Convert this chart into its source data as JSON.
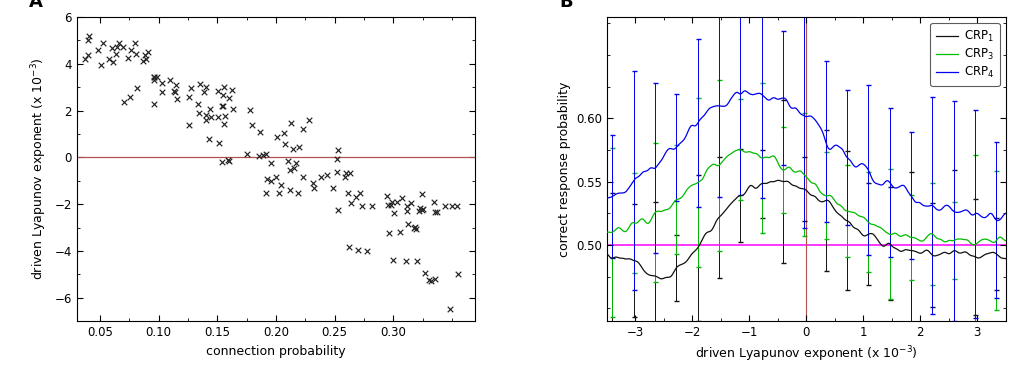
{
  "panel_A": {
    "label": "A",
    "xlabel": "connection probability",
    "ylabel": "driven Lyapunov exponent (x 10$^{-3}$)",
    "xlim": [
      0.03,
      0.37
    ],
    "ylim": [
      -7.0,
      6.0
    ],
    "yticks": [
      -6,
      -4,
      -2,
      0,
      2,
      4,
      6
    ],
    "xticks": [
      0.05,
      0.1,
      0.15,
      0.2,
      0.25,
      0.3
    ],
    "hline_y": 0,
    "hline_color": "#b05050",
    "scatter_color": "#222222"
  },
  "panel_B": {
    "label": "B",
    "xlabel": "driven Lyapunov exponent (x 10$^{-3}$)",
    "ylabel": "correct response probability",
    "xlim": [
      -3.5,
      3.5
    ],
    "ylim": [
      0.44,
      0.68
    ],
    "yticks": [
      0.5,
      0.55,
      0.6
    ],
    "xticks": [
      -3,
      -2,
      -1,
      0,
      1,
      2,
      3
    ],
    "hline_y": 0.5,
    "hline_color": "#ff00ff",
    "vline_x": 0,
    "vline_color": "#b05050",
    "crp1_color": "#111111",
    "crp3_color": "#00bb00",
    "crp4_color": "#0000ee"
  }
}
